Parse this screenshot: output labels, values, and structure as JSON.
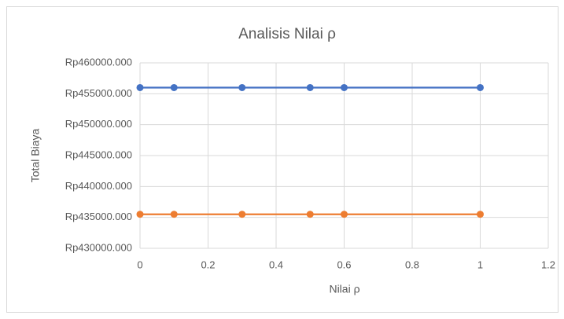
{
  "chart_data": {
    "type": "line",
    "title": "Analisis Nilai ρ",
    "x_label": "Nilai ρ",
    "y_label": "Total Biaya",
    "x": [
      0,
      0.1,
      0.3,
      0.5,
      0.6,
      1
    ],
    "series": [
      {
        "color": "#4472c4",
        "values": [
          456000,
          456000,
          456000,
          456000,
          456000,
          456000
        ]
      },
      {
        "color": "#ed7d31",
        "values": [
          435500,
          435500,
          435500,
          435500,
          435500,
          435500
        ]
      }
    ],
    "xlim": [
      0,
      1.2
    ],
    "xticks": [
      0,
      0.2,
      0.4,
      0.6,
      0.8,
      1,
      1.2
    ],
    "ylim": [
      430000,
      460000
    ],
    "yticks": [
      {
        "value": 430000,
        "label": "Rp430000.000"
      },
      {
        "value": 435000,
        "label": "Rp435000.000"
      },
      {
        "value": 440000,
        "label": "Rp440000.000"
      },
      {
        "value": 445000,
        "label": "Rp445000.000"
      },
      {
        "value": 450000,
        "label": "Rp450000.000"
      },
      {
        "value": 455000,
        "label": "Rp455000.000"
      },
      {
        "value": 460000,
        "label": "Rp460000.000"
      }
    ],
    "grid": true,
    "markers": true
  }
}
